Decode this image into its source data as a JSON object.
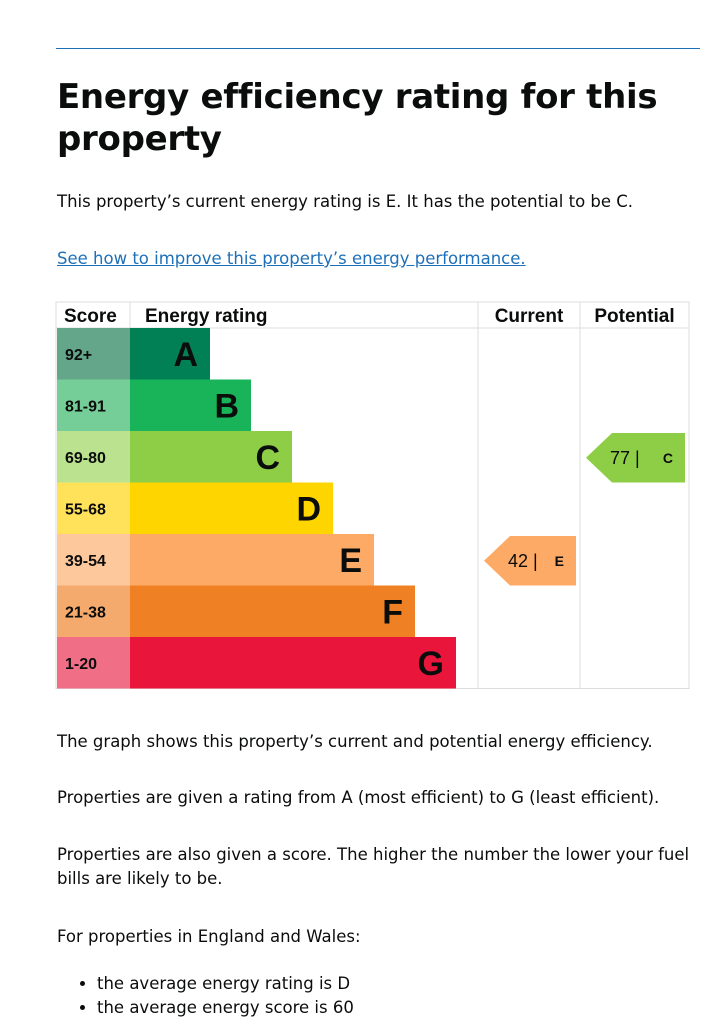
{
  "page": {
    "heading": "Energy efficiency rating for this property",
    "intro": "This property’s current energy rating is E. It has the potential to be C.",
    "improve_link": "See how to improve this property’s energy performance.",
    "paragraphs": [
      "The graph shows this property’s current and potential energy efficiency.",
      "Properties are given a rating from A (most efficient) to G (least efficient).",
      "Properties are also given a score. The higher the number the lower your fuel bills are likely to be.",
      "For properties in England and Wales:"
    ],
    "facts": [
      "the average energy rating is D",
      "the average energy score is 60"
    ]
  },
  "chart_data": {
    "type": "table",
    "headers": {
      "score": "Score",
      "rating": "Energy rating",
      "current": "Current",
      "potential": "Potential"
    },
    "bands": [
      {
        "range": "92+",
        "letter": "A",
        "color": "#008054",
        "score_color": "#64a68a"
      },
      {
        "range": "81-91",
        "letter": "B",
        "color": "#19b459",
        "score_color": "#75cd98"
      },
      {
        "range": "69-80",
        "letter": "C",
        "color": "#8dce46",
        "score_color": "#bbe28f"
      },
      {
        "range": "55-68",
        "letter": "D",
        "color": "#ffd500",
        "score_color": "#ffe25a"
      },
      {
        "range": "39-54",
        "letter": "E",
        "color": "#fcaa65",
        "score_color": "#fdc99c"
      },
      {
        "range": "21-38",
        "letter": "F",
        "color": "#ef8023",
        "score_color": "#f4aa6c"
      },
      {
        "range": "1-20",
        "letter": "G",
        "color": "#e9153b",
        "score_color": "#f06f86"
      }
    ],
    "current": {
      "score": 42,
      "letter": "E",
      "label": "42 |",
      "color": "#fcaa65"
    },
    "potential": {
      "score": 77,
      "letter": "C",
      "label": "77 |",
      "color": "#8dce46"
    }
  }
}
